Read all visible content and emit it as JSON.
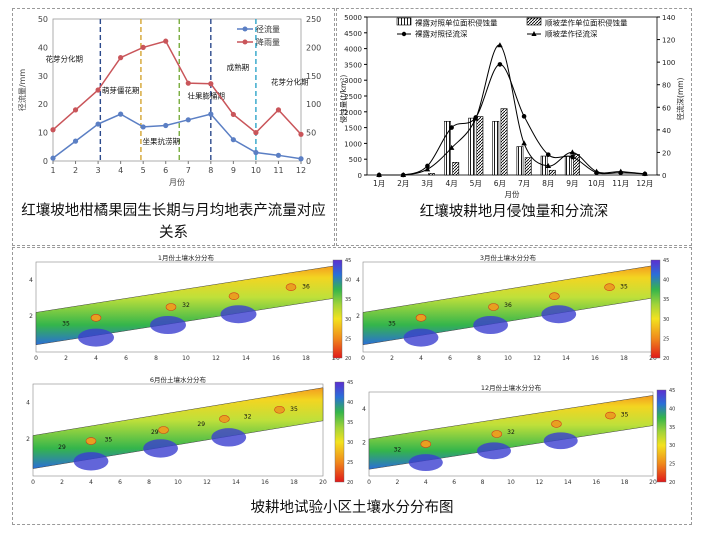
{
  "chart_data": [
    {
      "type": "line",
      "x": [
        1,
        2,
        3,
        4,
        5,
        6,
        7,
        8,
        9,
        10,
        11,
        12
      ],
      "xlabel": "月份",
      "ylabel": "径流量/mm",
      "ylim": [
        0,
        50
      ],
      "y2lim": [
        0,
        250
      ],
      "xlim": [
        1,
        12
      ],
      "xticks": [
        "1",
        "2",
        "3",
        "4",
        "5",
        "6",
        "7",
        "8",
        "9",
        "10",
        "11",
        "12"
      ],
      "yticks": [
        "0",
        "10",
        "20",
        "30",
        "40",
        "50"
      ],
      "y2ticks": [
        "0",
        "50",
        "100",
        "150",
        "200",
        "250"
      ],
      "series": [
        {
          "name": "径流量",
          "axis": "left",
          "color": "#5b7fc4",
          "values": [
            1,
            7,
            13,
            16.5,
            12,
            12.5,
            14.5,
            16.5,
            7.5,
            3,
            2,
            0.8
          ]
        },
        {
          "name": "降雨量",
          "axis": "right",
          "color": "#c9555a",
          "values": [
            55,
            90,
            125,
            182,
            200,
            211,
            137,
            136,
            82,
            50,
            90,
            47
          ]
        }
      ],
      "vlines": [
        {
          "x": 3.1,
          "color": "#2b4a8c"
        },
        {
          "x": 4.9,
          "color": "#d4a531"
        },
        {
          "x": 6.6,
          "color": "#79ac3e"
        },
        {
          "x": 8.0,
          "color": "#2b4a8c"
        },
        {
          "x": 10.0,
          "color": "#2ea4c9"
        }
      ],
      "annotations": [
        "花芽分化期",
        "萌芽僵花期",
        "坐果抗涝期",
        "壮果膨桶期",
        "成熟期",
        "花芽分化期"
      ],
      "caption": "红壤坡地柑橘果园生长期与月均地表产流量对应关系"
    },
    {
      "type": "bar",
      "categories": [
        "1月",
        "2月",
        "3月",
        "4月",
        "5月",
        "6月",
        "7月",
        "8月",
        "9月",
        "10月",
        "11月",
        "12月"
      ],
      "xlabel": "月份",
      "ylabel": "侵蚀量(t/km²)",
      "y2label": "径流深(mm)",
      "ylim": [
        0,
        5000
      ],
      "y2lim": [
        0,
        140
      ],
      "yticks": [
        "0",
        "500",
        "1000",
        "1500",
        "2000",
        "2500",
        "3000",
        "3500",
        "4000",
        "4500",
        "5000"
      ],
      "y2ticks": [
        "0",
        "20",
        "40",
        "60",
        "80",
        "100",
        "120",
        "140"
      ],
      "series": [
        {
          "name": "裸露对照单位面积侵蚀量",
          "kind": "bar",
          "values": [
            0,
            0,
            0,
            1700,
            1800,
            1700,
            900,
            600,
            600,
            0,
            0,
            0
          ]
        },
        {
          "name": "顺坡垄作单位面积侵蚀量",
          "kind": "bar",
          "values": [
            0,
            0,
            50,
            400,
            1850,
            2100,
            550,
            150,
            650,
            0,
            0,
            0
          ]
        },
        {
          "name": "裸露对照径流深",
          "kind": "line",
          "axis": "right",
          "values": [
            0,
            0,
            8,
            42,
            51,
            98,
            52,
            18,
            16,
            2,
            2,
            1
          ]
        },
        {
          "name": "顺坡垄作径流深",
          "kind": "line",
          "axis": "right",
          "values": [
            0,
            0,
            5,
            24,
            50,
            115,
            28,
            8,
            20,
            3,
            3,
            1
          ]
        }
      ],
      "caption": "红壤坡耕地月侵蚀量和分流深"
    },
    {
      "type": "heatmap",
      "caption": "坡耕地试验小区土壤水分分布图",
      "xlim": [
        0,
        20
      ],
      "ylim": [
        0,
        5
      ],
      "colorbar_ticks": [
        "20",
        "25",
        "30",
        "35",
        "40",
        "45"
      ],
      "maps": [
        {
          "title": "1月份土壤水分分布",
          "contours": [
            "35",
            "32",
            "36"
          ],
          "yticks": [
            "2",
            "4"
          ],
          "xticks": [
            "0",
            "2",
            "4",
            "6",
            "8",
            "10",
            "12",
            "14",
            "16",
            "18",
            "20"
          ]
        },
        {
          "title": "3月份土壤水分分布",
          "contours": [
            "35",
            "36",
            "35"
          ],
          "yticks": [
            "2",
            "4"
          ],
          "xticks": [
            "0",
            "2",
            "4",
            "6",
            "8",
            "10",
            "12",
            "14",
            "16",
            "18",
            "20"
          ]
        },
        {
          "title": "6月份土壤水分分布",
          "contours": [
            "29",
            "35",
            "29",
            "29",
            "32",
            "35"
          ],
          "yticks": [
            "2",
            "4"
          ],
          "xticks": [
            "0",
            "2",
            "4",
            "6",
            "8",
            "10",
            "12",
            "14",
            "16",
            "18",
            "20"
          ]
        },
        {
          "title": "12月份土壤水分分布",
          "contours": [
            "32",
            "32",
            "35"
          ],
          "yticks": [
            "2",
            "4"
          ],
          "xticks": [
            "0",
            "2",
            "4",
            "6",
            "8",
            "10",
            "12",
            "14",
            "16",
            "18",
            "20"
          ]
        }
      ]
    }
  ]
}
